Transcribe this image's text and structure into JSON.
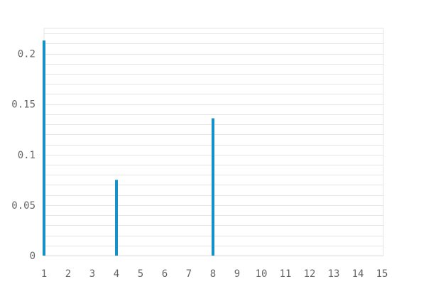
{
  "chart_data": {
    "type": "bar",
    "categories": [
      "1",
      "2",
      "3",
      "4",
      "5",
      "6",
      "7",
      "8",
      "9",
      "10",
      "11",
      "12",
      "13",
      "14",
      "15"
    ],
    "values": [
      0.213,
      0,
      0,
      0.075,
      0,
      0,
      0,
      0.136,
      0,
      0,
      0,
      0,
      0,
      0,
      0
    ],
    "ylim": [
      0,
      0.225
    ],
    "yticks": [
      0,
      0.05,
      0.1,
      0.15,
      0.2
    ],
    "ytick_labels": [
      "0",
      "0.05",
      "0.1",
      "0.15",
      "0.2"
    ],
    "grid": true,
    "bar_color": "#1591c8"
  }
}
